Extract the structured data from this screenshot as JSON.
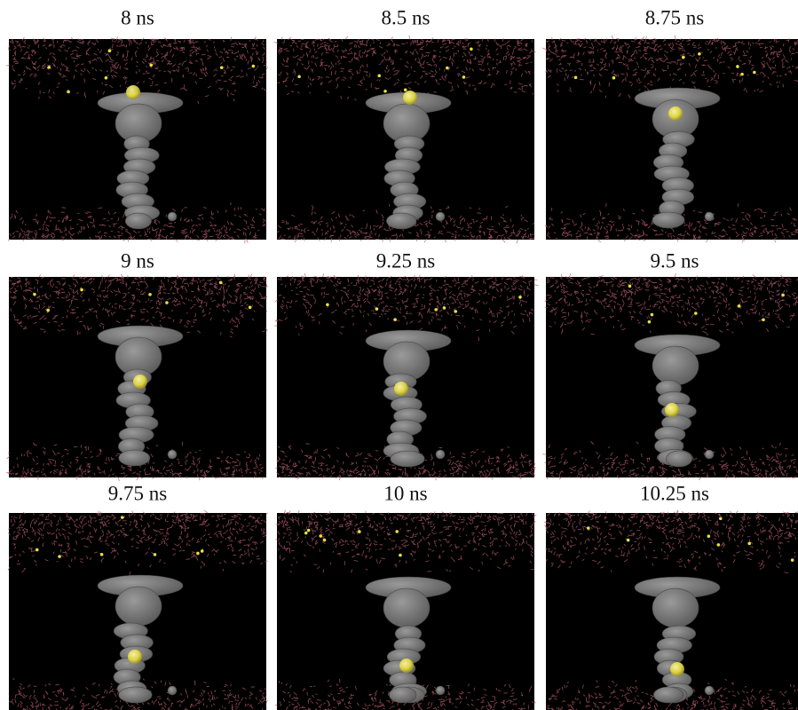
{
  "panels": [
    {
      "label": "8 ns"
    },
    {
      "label": "8.5 ns"
    },
    {
      "label": "8.75 ns"
    },
    {
      "label": "9 ns"
    },
    {
      "label": "9.25 ns"
    },
    {
      "label": "9.5 ns"
    },
    {
      "label": "9.75 ns"
    },
    {
      "label": "10 ns"
    },
    {
      "label": "10.25 ns"
    }
  ]
}
